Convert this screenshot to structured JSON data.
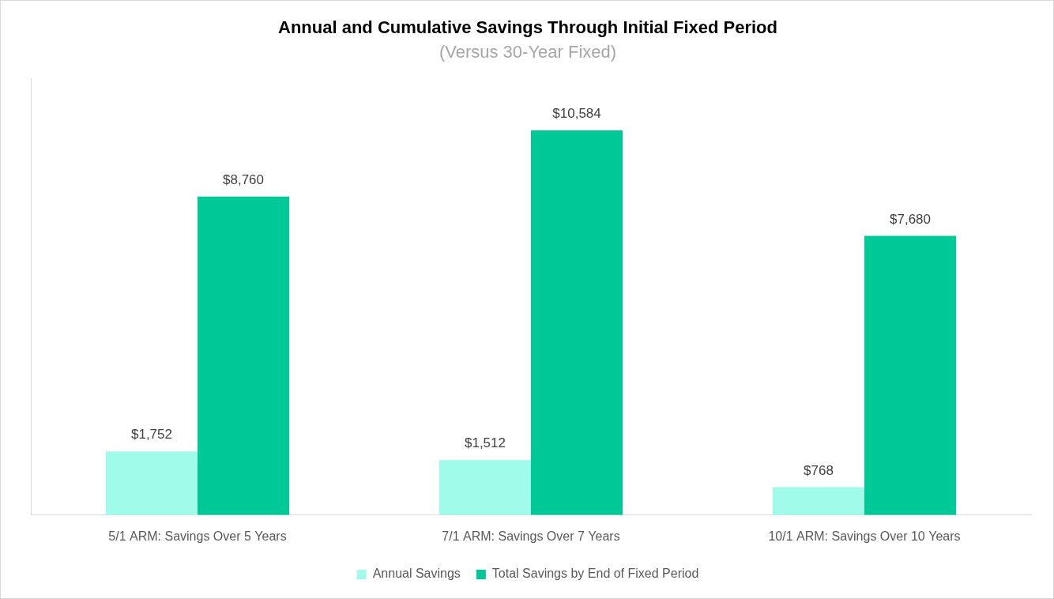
{
  "chart_data": {
    "type": "bar",
    "title": "Annual and Cumulative Savings Through Initial Fixed Period",
    "subtitle": "(Versus 30-Year Fixed)",
    "categories": [
      "5/1 ARM: Savings Over 5 Years",
      "7/1 ARM: Savings Over 7 Years",
      "10/1 ARM: Savings Over 10 Years"
    ],
    "series": [
      {
        "name": "Annual Savings",
        "color": "#a0fbeb",
        "values": [
          1752,
          1512,
          768
        ],
        "value_labels": [
          "$1,752",
          "$1,512",
          "$768"
        ]
      },
      {
        "name": "Total Savings by End of Fixed Period",
        "color": "#00c896",
        "values": [
          8760,
          10584,
          7680
        ],
        "value_labels": [
          "$8,760",
          "$10,584",
          "$7,680"
        ]
      }
    ],
    "ylim": [
      0,
      12000
    ],
    "yticks": [],
    "grid": false,
    "legend": "bottom",
    "data_labels": true,
    "tick_labels": "x"
  }
}
